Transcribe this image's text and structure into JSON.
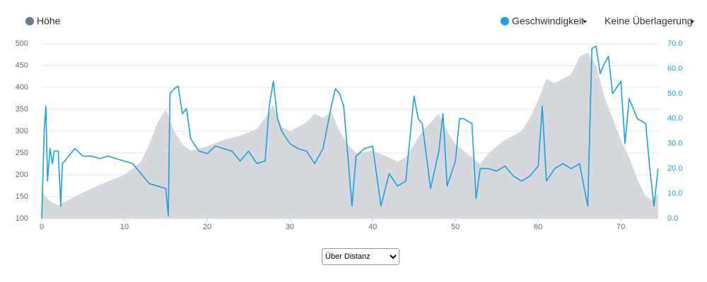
{
  "chart_data": {
    "type": "combo",
    "xlim": [
      0,
      74.6
    ],
    "xticks": [
      0,
      10,
      20,
      30,
      40,
      50,
      60,
      70
    ],
    "ylim": [
      100,
      500
    ],
    "yticks": [
      100,
      150,
      200,
      250,
      300,
      350,
      400,
      450,
      500
    ],
    "y2lim": [
      0,
      70
    ],
    "y2ticks": [
      {
        "value": 0,
        "label": "0.0"
      },
      {
        "value": 10,
        "label": "10.0"
      },
      {
        "value": 20,
        "label": "20.0"
      },
      {
        "value": 30,
        "label": "30.0"
      },
      {
        "value": 40,
        "label": "40.0"
      },
      {
        "value": 50,
        "label": "50.0"
      },
      {
        "value": 60,
        "label": "60.0"
      },
      {
        "value": 70,
        "label": "70.0"
      }
    ],
    "grid": true,
    "overlay": "Keine Überlagerung",
    "x_mode": "Über Distanz",
    "series": [
      {
        "name": "Höhe",
        "type": "area",
        "color": "#d5d9de",
        "legend_color": "#6b7a8c",
        "x": [
          0,
          1,
          2,
          3,
          5,
          8,
          10,
          12,
          13,
          14,
          15,
          16,
          17,
          18,
          20,
          22,
          24,
          26,
          27,
          28,
          29,
          30,
          32,
          33,
          34,
          35,
          36,
          37,
          38,
          40,
          42,
          43,
          44,
          45,
          46,
          47,
          48,
          49,
          50,
          52,
          53,
          54,
          56,
          58,
          59,
          60,
          61,
          62,
          63,
          64,
          65,
          66,
          67,
          68,
          69,
          70,
          71,
          72,
          73,
          74,
          74.5
        ],
        "values": [
          160,
          140,
          130,
          140,
          160,
          185,
          200,
          230,
          270,
          320,
          350,
          300,
          270,
          255,
          265,
          280,
          290,
          305,
          330,
          360,
          310,
          300,
          320,
          340,
          330,
          345,
          300,
          270,
          250,
          255,
          240,
          230,
          240,
          270,
          300,
          320,
          340,
          300,
          270,
          240,
          225,
          250,
          280,
          300,
          330,
          370,
          420,
          410,
          420,
          430,
          470,
          480,
          450,
          380,
          330,
          280,
          240,
          190,
          150,
          140,
          160
        ]
      },
      {
        "name": "Geschwindigkeit",
        "type": "line",
        "axis": "y2",
        "color": "#1ba1e2",
        "x": [
          0,
          0.3,
          0.5,
          0.7,
          1,
          1.3,
          1.5,
          2,
          2.3,
          2.5,
          3,
          4,
          5,
          6,
          7,
          8,
          9,
          10,
          11,
          12,
          12.5,
          13,
          14,
          15,
          15.3,
          15.5,
          16,
          16.5,
          17,
          17.5,
          18,
          19,
          20,
          21,
          22,
          23,
          23.5,
          24,
          25,
          26,
          27,
          27.5,
          28,
          28.5,
          29,
          30,
          31,
          32,
          33,
          34,
          35,
          35.5,
          36,
          36.5,
          37,
          37.5,
          38,
          39,
          40,
          41,
          42,
          43,
          44,
          45,
          45.5,
          46,
          47,
          48,
          48.5,
          49,
          50,
          50.5,
          51,
          52,
          52.5,
          53,
          54,
          55,
          56,
          57,
          58,
          59,
          60,
          60.5,
          61,
          62,
          63,
          64,
          65,
          66,
          66.5,
          67,
          67.5,
          68,
          68.5,
          69,
          70,
          70.5,
          71,
          72,
          73,
          73.5,
          74,
          74.5
        ],
        "values": [
          0,
          35,
          45,
          15,
          28,
          22,
          27,
          27,
          5,
          22,
          24,
          28,
          25,
          25,
          24,
          25,
          24,
          23,
          22,
          18,
          16,
          14,
          13,
          12,
          1,
          50,
          52,
          53,
          42,
          44,
          32,
          27,
          26,
          29,
          28,
          27,
          25,
          23,
          27,
          22,
          23,
          45,
          55,
          40,
          35,
          30,
          28,
          27,
          22,
          28,
          45,
          52,
          50,
          45,
          25,
          5,
          25,
          28,
          29,
          5,
          18,
          13,
          15,
          49,
          40,
          38,
          12,
          27,
          42,
          13,
          23,
          40,
          40,
          38,
          8,
          20,
          20,
          19,
          21,
          17,
          15,
          17,
          21,
          45,
          15,
          20,
          22,
          20,
          22,
          5,
          68,
          69,
          58,
          62,
          65,
          50,
          55,
          30,
          48,
          40,
          38,
          20,
          5,
          20
        ]
      }
    ]
  }
}
